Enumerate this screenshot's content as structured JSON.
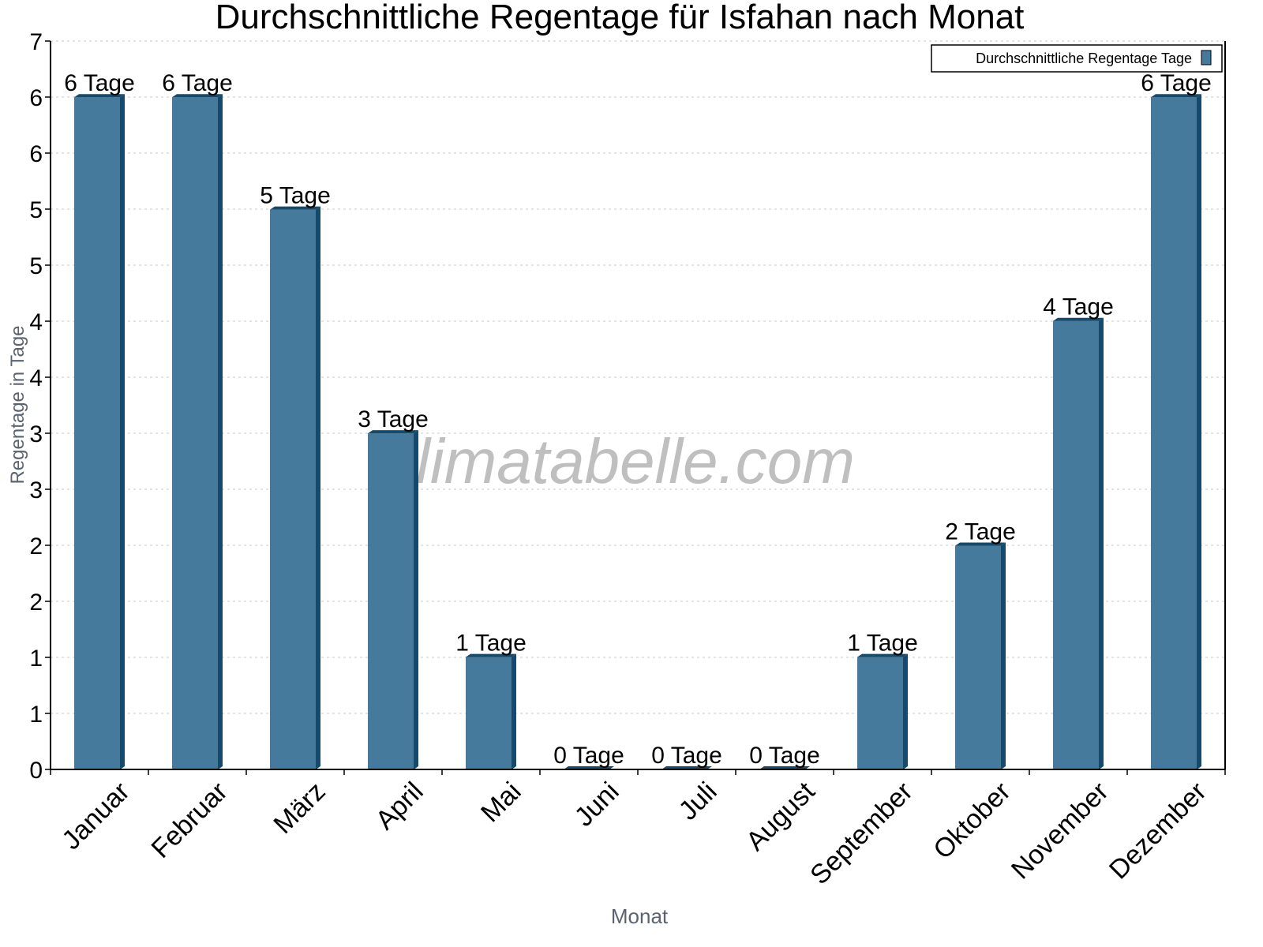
{
  "chart_data": {
    "type": "bar",
    "title": "Durchschnittliche Regentage für Isfahan nach Monat",
    "xlabel": "Monat",
    "ylabel": "Regentage in Tage",
    "categories": [
      "Januar",
      "Februar",
      "März",
      "April",
      "Mai",
      "Juni",
      "Juli",
      "August",
      "September",
      "Oktober",
      "November",
      "Dezember"
    ],
    "series": [
      {
        "name": "Durchschnittliche Regentage Tage",
        "values": [
          6.46,
          6.46,
          5.38,
          3.23,
          1.08,
          0,
          0,
          0,
          1.08,
          2.15,
          4.31,
          6.46
        ],
        "data_labels": [
          "6 Tage",
          "6 Tage",
          "5 Tage",
          "3 Tage",
          "1 Tage",
          "0 Tage",
          "0 Tage",
          "0 Tage",
          "1 Tage",
          "2 Tage",
          "4 Tage",
          "6 Tage"
        ],
        "color": "#467a9c",
        "side_color": "#174a6a"
      }
    ],
    "ylim": [
      0,
      7
    ],
    "yticks": [
      0,
      0.54,
      1.08,
      1.62,
      2.15,
      2.69,
      3.23,
      3.77,
      4.31,
      4.85,
      5.38,
      5.92,
      6.46,
      7
    ],
    "ytick_labels": [
      "0",
      "1",
      "1",
      "2",
      "2",
      "3",
      "3",
      "4",
      "4",
      "5",
      "5",
      "6",
      "6",
      "7"
    ],
    "grid": true,
    "legend_position": "top-right",
    "watermark": "klimatabelle.com"
  },
  "colors": {
    "bar_front": "#467a9c",
    "bar_side": "#174a6a",
    "grid": "#c8c8c8",
    "axis": "#000000",
    "axis_title": "#5a6470"
  }
}
